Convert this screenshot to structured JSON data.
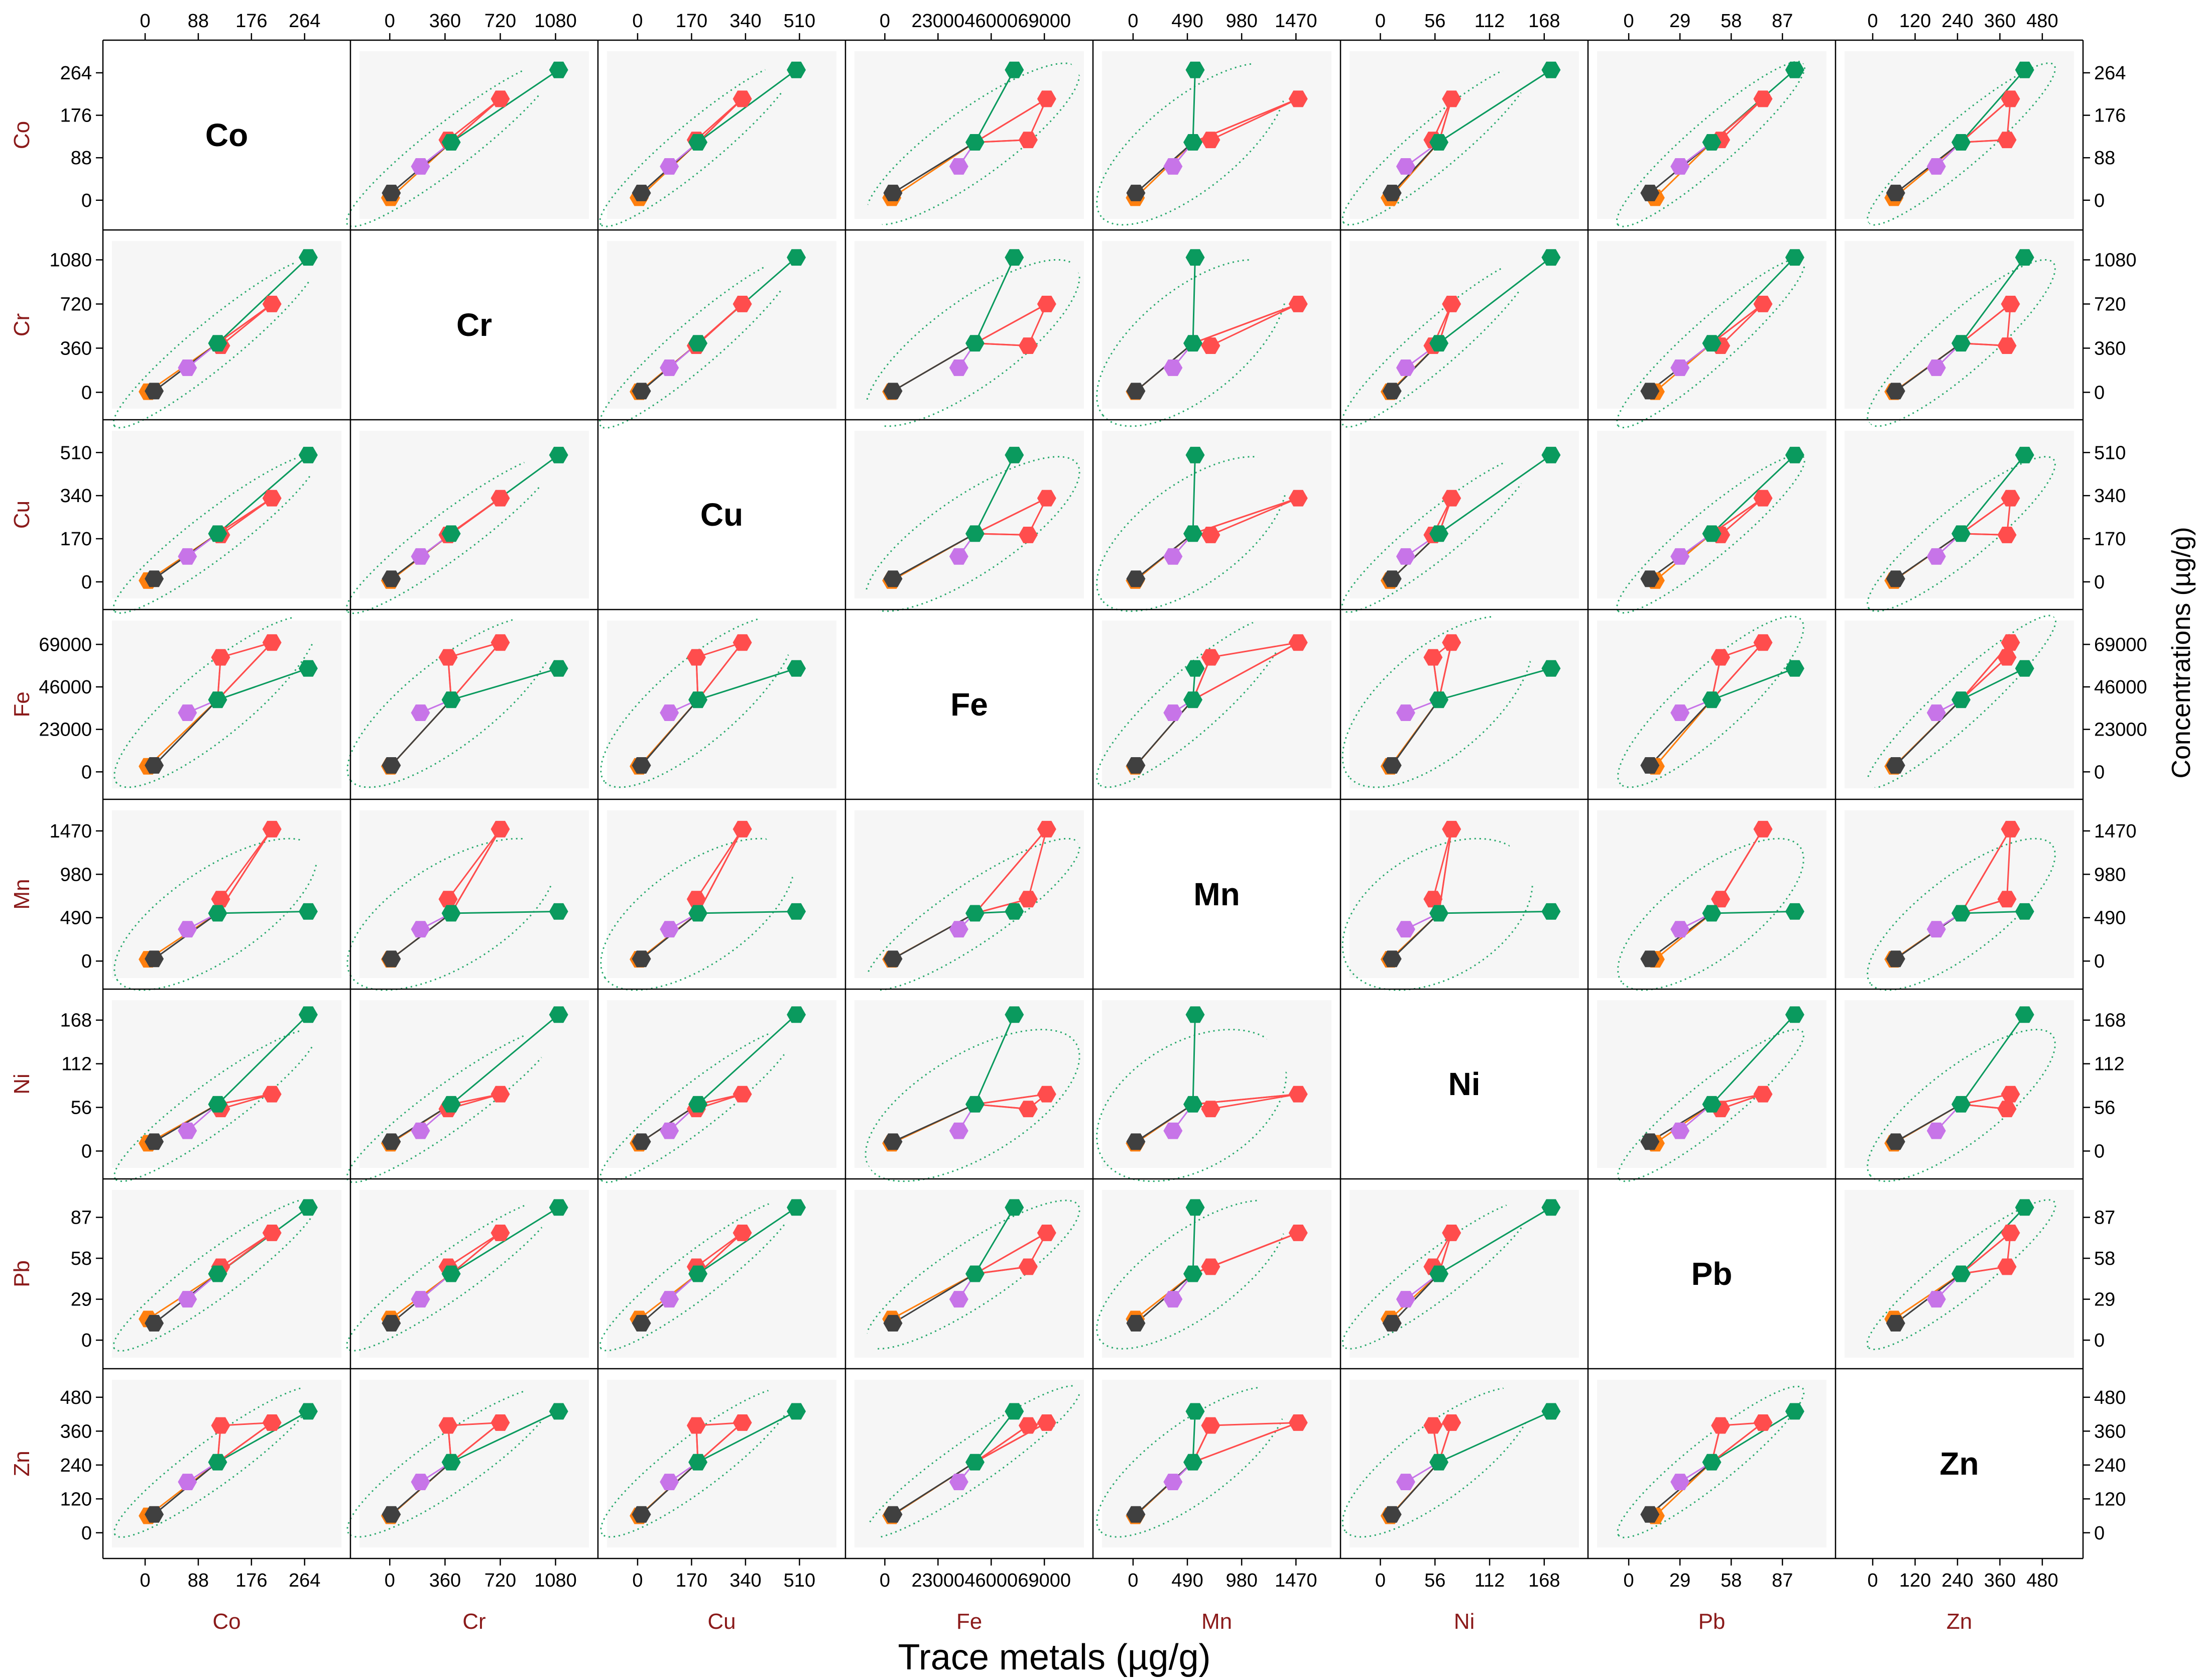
{
  "chart_data": {
    "type": "scatter",
    "xlabel": "Trace metals (µg/g)",
    "ylabel": "Concentrations (µg/g)",
    "variables": [
      {
        "name": "Co",
        "ticks": [
          "0",
          "88",
          "176",
          "264"
        ],
        "tickvals": [
          0,
          88,
          176,
          264
        ],
        "range": [
          -20,
          290
        ]
      },
      {
        "name": "Cr",
        "ticks": [
          "0",
          "360",
          "720",
          "1080"
        ],
        "tickvals": [
          0,
          360,
          720,
          1080
        ],
        "range": [
          -60,
          1160
        ]
      },
      {
        "name": "Cu",
        "ticks": [
          "0",
          "170",
          "340",
          "510"
        ],
        "tickvals": [
          0,
          170,
          340,
          510
        ],
        "range": [
          -30,
          560
        ]
      },
      {
        "name": "Fe",
        "ticks": [
          "0",
          "23000",
          "46000",
          "69000"
        ],
        "tickvals": [
          0,
          23000,
          46000,
          69000
        ],
        "range": [
          -4000,
          77000
        ]
      },
      {
        "name": "Mn",
        "ticks": [
          "0",
          "490",
          "980",
          "1470"
        ],
        "tickvals": [
          0,
          490,
          980,
          1470
        ],
        "range": [
          -90,
          1600
        ]
      },
      {
        "name": "Ni",
        "ticks": [
          "0",
          "56",
          "112",
          "168"
        ],
        "tickvals": [
          0,
          56,
          112,
          168
        ],
        "range": [
          -10,
          182
        ]
      },
      {
        "name": "Pb",
        "ticks": [
          "0",
          "29",
          "58",
          "87"
        ],
        "tickvals": [
          0,
          29,
          58,
          87
        ],
        "range": [
          -6,
          100
        ]
      },
      {
        "name": "Zn",
        "ticks": [
          "0",
          "120",
          "240",
          "360",
          "480"
        ],
        "tickvals": [
          0,
          120,
          240,
          360,
          480
        ],
        "range": [
          -20,
          510
        ]
      }
    ],
    "center_group": {
      "color": "#0a9a5e",
      "values": [
        120,
        400,
        190,
        39000,
        540,
        60,
        47,
        250
      ]
    },
    "samples": [
      {
        "color": "#ff7f0e",
        "values": [
          5,
          5,
          5,
          3000,
          20,
          10,
          15,
          60
        ]
      },
      {
        "color": "#404040",
        "values": [
          15,
          10,
          12,
          3500,
          25,
          12,
          12,
          65
        ]
      },
      {
        "color": "#c774e8",
        "values": [
          70,
          200,
          100,
          32000,
          360,
          26,
          29,
          180
        ]
      },
      {
        "color": "#ff4d4d",
        "values": [
          125,
          380,
          185,
          62000,
          700,
          54,
          52,
          380
        ]
      },
      {
        "color": "#ff4d4d",
        "values": [
          210,
          720,
          330,
          70000,
          1490,
          73,
          76,
          390
        ]
      },
      {
        "color": "#0a9a5e",
        "values": [
          270,
          1100,
          500,
          56000,
          560,
          175,
          94,
          430
        ]
      }
    ],
    "red_links": [
      [
        0,
        3
      ],
      [
        0,
        4
      ],
      [
        4,
        3
      ]
    ],
    "ellipse_color": "#27a96c",
    "grid": false
  }
}
